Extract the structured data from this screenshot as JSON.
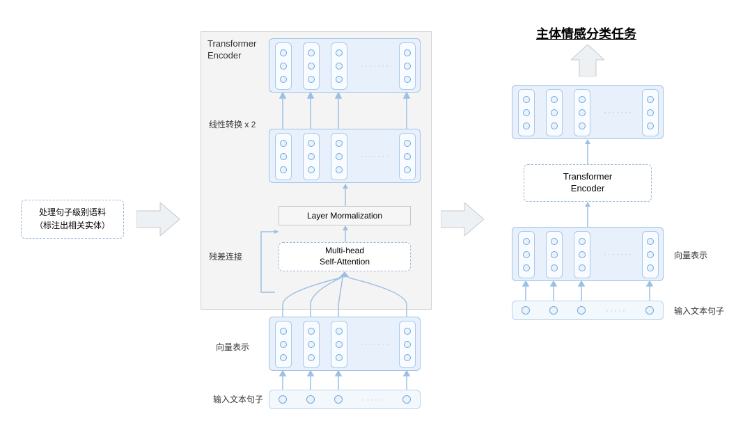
{
  "diagram": {
    "type": "flowchart",
    "background_color": "#ffffff",
    "accent_color": "#9ec3e6",
    "panel_fill": "#e8f1fb",
    "node_fill": "#f8fbff",
    "dot_border": "#6fa8dc",
    "big_arrow_fill": "#eef1f3",
    "big_arrow_border": "#c8c8c8",
    "small_arrow_color": "#9cc0e4",
    "dashed_border": "#9cb8d8",
    "text_color": "#333333"
  },
  "left": {
    "box_text": "处理句子级别语料\n（标注出相关实体）"
  },
  "center": {
    "encoder_title": "Transformer\nEncoder",
    "linear_label": "线性转换 x 2",
    "layernorm": "Layer Mormalization",
    "residual_label": "残差连接",
    "attention": "Multi-head\nSelf-Attention",
    "vec_label": "向量表示",
    "input_label": "输入文本句子"
  },
  "right": {
    "task_title": "主体情感分类任务",
    "encoder_title": "Transformer\nEncoder",
    "vec_label": "向量表示",
    "input_label": "输入文本句子"
  },
  "vec_panel": {
    "columns": 4,
    "dots_per_column": 3
  }
}
